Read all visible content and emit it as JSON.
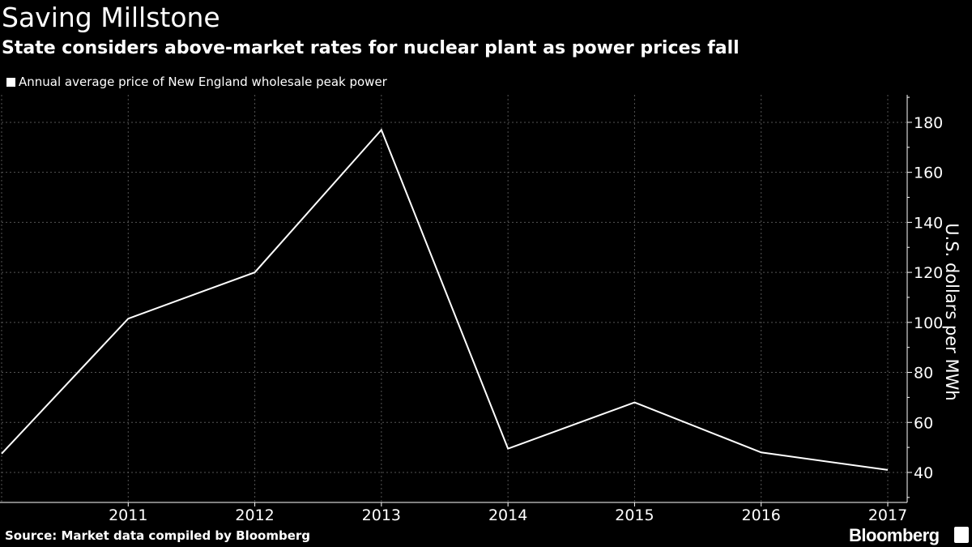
{
  "header": {
    "title": "Saving Millstone",
    "subtitle": "State considers above-market rates for nuclear plant as power prices fall"
  },
  "legend": {
    "label": "Annual average price of New England wholesale peak power"
  },
  "footer": {
    "source": "Source: Market data compiled by Bloomberg",
    "brand": "Bloomberg"
  },
  "colors": {
    "background": "#000000",
    "line": "#ffffff",
    "grid": "#555555",
    "text": "#ffffff"
  },
  "chart_data": {
    "type": "line",
    "title": "Saving Millstone",
    "subtitle": "State considers above-market rates for nuclear plant as power prices fall",
    "ylabel": "U.S. dollars per MWh",
    "xlabel": "",
    "x": [
      2010,
      2011,
      2012,
      2013,
      2014,
      2015,
      2016,
      2017
    ],
    "series": [
      {
        "name": "Annual average price of New England wholesale peak power",
        "values": [
          47.5,
          101.5,
          120,
          177,
          49.5,
          68,
          48,
          41
        ]
      }
    ],
    "x_ticks": [
      "2011",
      "2012",
      "2013",
      "2014",
      "2015",
      "2016",
      "2017"
    ],
    "y_ticks": [
      40,
      60,
      80,
      100,
      120,
      140,
      160,
      180
    ],
    "xlim": [
      2010,
      2017
    ],
    "ylim": [
      28,
      191
    ],
    "y_axis_position": "right",
    "grid": true,
    "legend_position": "top-left"
  }
}
